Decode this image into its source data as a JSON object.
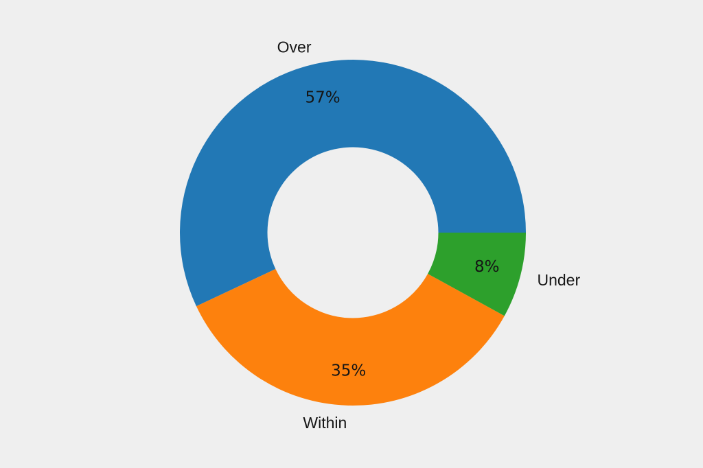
{
  "page": {
    "background_color": "#efefef",
    "text_color": "#151515"
  },
  "chart_data": {
    "type": "pie",
    "subtype": "donut",
    "title": "",
    "legend": "none",
    "labels": [
      "Over",
      "Within",
      "Under"
    ],
    "values": [
      57,
      35,
      8
    ],
    "percent_labels": [
      "57%",
      "35%",
      "8%"
    ],
    "colors": [
      "#2278b5",
      "#fd810d",
      "#2da02c"
    ],
    "start_angle_deg": 0,
    "direction": "counterclockwise",
    "inner_radius_ratio": 0.494,
    "percent_label_distance_ratio": 0.8,
    "category_label_distance_ratio": 1.1
  }
}
